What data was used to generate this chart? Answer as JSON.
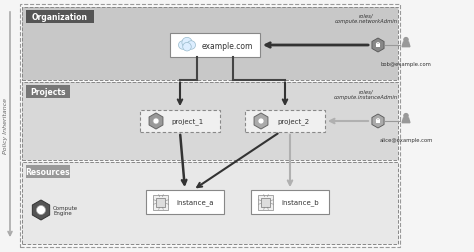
{
  "bg_color": "#f5f5f5",
  "org_bg": "#c8c8c8",
  "proj_bg": "#d8d8d8",
  "res_bg": "#e8e8e8",
  "org_label": "Organization",
  "proj_label": "Projects",
  "res_label": "Resources",
  "policy_label": "Policy Inheritance",
  "example_label": "example.com",
  "proj1_label": "project_1",
  "proj2_label": "project_2",
  "inst_a_label": "instance_a",
  "inst_b_label": "instance_b",
  "compute_label": "Compute\nEngine",
  "bob_role": "roles/\ncompute.networkAdmin",
  "alice_role": "roles/\ncompute.instanceAdmin",
  "bob_label": "bob@example.com",
  "alice_label": "alice@example.com",
  "arrow_dark": "#333333",
  "arrow_gray": "#b0b0b0",
  "box_ec": "#888888",
  "hex_fc": "#888888",
  "hex_ec": "#666666",
  "label_dark_fc": "#555555",
  "label_med_fc": "#888888",
  "label_light_fc": "#aaaaaa"
}
